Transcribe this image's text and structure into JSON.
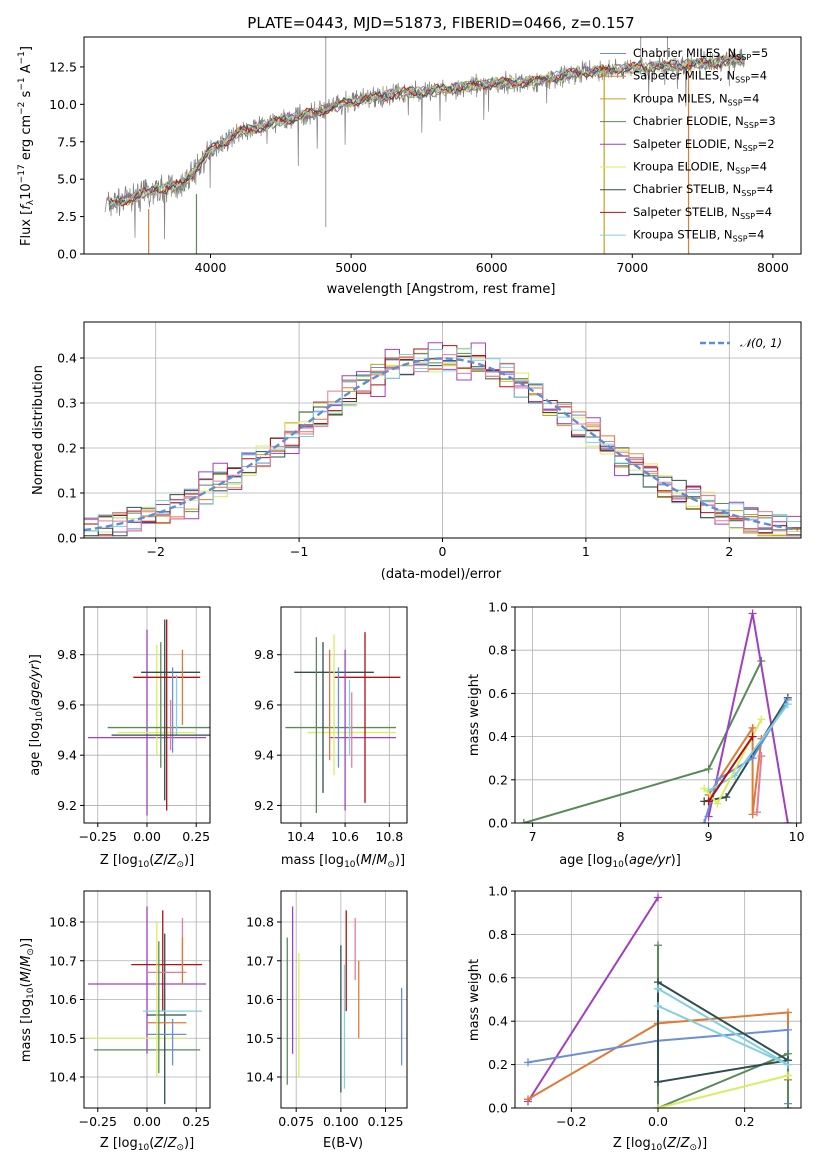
{
  "colors": {
    "chabrier_miles": "#6a8ed8",
    "salpeter_miles": "#e07a35",
    "kroupa_miles": "#c8a020",
    "chabrier_elodie": "#5a8a5a",
    "salpeter_elodie": "#a040c0",
    "kroupa_elodie": "#d8ee60",
    "chabrier_stelib": "#2f4f4f",
    "salpeter_stelib": "#b01010",
    "kroupa_stelib": "#80d0e0",
    "pink": "#e87aa0",
    "spectrum": "#7f7f7f"
  },
  "chart_data": [
    {
      "id": "spectrum",
      "type": "line",
      "title": "PLATE=0443, MJD=51873, FIBERID=0466, z=0.157",
      "xlabel": "wavelength [Angstrom, rest frame]",
      "ylabel": "Flux [f_λ 10^−17 erg cm^−2 s^−1 A^−1]",
      "xlim": [
        3100,
        8200
      ],
      "ylim": [
        0,
        14.5
      ],
      "xticks": [
        "4000",
        "5000",
        "6000",
        "7000",
        "8000"
      ],
      "yticks": [
        "0.0",
        "2.5",
        "5.0",
        "7.5",
        "10.0",
        "12.5"
      ],
      "legend_position": "right",
      "grid": false,
      "continuum": {
        "x": [
          3250,
          3400,
          3600,
          3800,
          4000,
          4200,
          4500,
          4800,
          5000,
          5300,
          5600,
          6000,
          6300,
          6600,
          7000,
          7300,
          7600,
          7800
        ],
        "y": [
          3.3,
          3.6,
          4.3,
          4.6,
          6.9,
          8.1,
          8.9,
          9.6,
          10.2,
          10.7,
          10.9,
          11.4,
          11.5,
          12.1,
          12.4,
          12.6,
          12.8,
          13.0
        ]
      },
      "series": [
        {
          "name": "Chabrier MILES, N_SSP=5",
          "color_key": "chabrier_miles"
        },
        {
          "name": "Salpeter MILES, N_SSP=4",
          "color_key": "salpeter_miles"
        },
        {
          "name": "Kroupa MILES, N_SSP=4",
          "color_key": "kroupa_miles"
        },
        {
          "name": "Chabrier ELODIE, N_SSP=3",
          "color_key": "chabrier_elodie"
        },
        {
          "name": "Salpeter ELODIE, N_SSP=2",
          "color_key": "salpeter_elodie"
        },
        {
          "name": "Kroupa ELODIE, N_SSP=4",
          "color_key": "kroupa_elodie"
        },
        {
          "name": "Chabrier STELIB, N_SSP=4",
          "color_key": "chabrier_stelib"
        },
        {
          "name": "Salpeter STELIB, N_SSP=4",
          "color_key": "salpeter_stelib"
        },
        {
          "name": "Kroupa STELIB, N_SSP=4",
          "color_key": "kroupa_stelib"
        }
      ]
    },
    {
      "id": "residuals",
      "type": "histogram",
      "xlabel": "(data-model)/error",
      "ylabel": "Normed distribution",
      "xlim": [
        -2.5,
        2.5
      ],
      "ylim": [
        0,
        0.48
      ],
      "xticks": [
        "−2",
        "−1",
        "0",
        "1",
        "2"
      ],
      "yticks": [
        "0.0",
        "0.1",
        "0.2",
        "0.3",
        "0.4"
      ],
      "grid": true,
      "legend": {
        "label": "𝒩(0, 1)",
        "position": "top-right"
      },
      "bin_width": 0.1,
      "reference_curve": "normal(0,1)"
    },
    {
      "id": "Z_age",
      "type": "errorbar",
      "xlabel": "Z [log10(Z/Z⊙)]",
      "ylabel": "age  [log10(age/yr)]",
      "xlim": [
        -0.32,
        0.32
      ],
      "ylim": [
        9.13,
        9.99
      ],
      "xticks": [
        "−0.25",
        "0.00",
        "0.25"
      ],
      "xtick_values": [
        -0.25,
        0,
        0.25
      ],
      "yticks": [
        "9.2",
        "9.4",
        "9.6",
        "9.8"
      ],
      "ytick_values": [
        9.2,
        9.4,
        9.6,
        9.8
      ],
      "grid": true,
      "points": [
        {
          "color_key": "salpeter_elodie",
          "x": 0.0,
          "xerr": 0.3,
          "y": 9.47,
          "yerr": 0.0
        },
        {
          "color_key": "salpeter_elodie",
          "x": 0.0,
          "xerr": 0.0,
          "y": 9.53,
          "yerr": 0.37
        },
        {
          "color_key": "kroupa_elodie",
          "x": 0.05,
          "xerr": 0.0,
          "y": 9.62,
          "yerr": 0.22
        },
        {
          "color_key": "kroupa_elodie",
          "x": 0.05,
          "xerr": 0.2,
          "y": 9.49,
          "yerr": 0.0
        },
        {
          "color_key": "chabrier_elodie",
          "x": 0.06,
          "xerr": 0.26,
          "y": 9.51,
          "yerr": 0.0
        },
        {
          "color_key": "chabrier_elodie",
          "x": 0.07,
          "xerr": 0.0,
          "y": 9.6,
          "yerr": 0.25
        },
        {
          "color_key": "chabrier_stelib",
          "x": 0.09,
          "xerr": 0.0,
          "y": 9.58,
          "yerr": 0.36
        },
        {
          "color_key": "chabrier_stelib",
          "x": 0.09,
          "xerr": 0.0,
          "y": 9.73,
          "yerr": 0.0
        },
        {
          "color_key": "salpeter_stelib",
          "x": 0.1,
          "xerr": 0.0,
          "y": 9.56,
          "yerr": 0.38
        },
        {
          "color_key": "salpeter_stelib",
          "x": 0.1,
          "xerr": 0.17,
          "y": 9.71,
          "yerr": 0.0
        },
        {
          "color_key": "chabrier_stelib",
          "x": 0.12,
          "xerr": 0.15,
          "y": 9.73,
          "yerr": 0.0
        },
        {
          "color_key": "pink",
          "x": 0.12,
          "xerr": 0.0,
          "y": 9.52,
          "yerr": 0.1
        },
        {
          "color_key": "chabrier_miles",
          "x": 0.13,
          "xerr": 0.0,
          "y": 9.58,
          "yerr": 0.17
        },
        {
          "color_key": "kroupa_stelib",
          "x": 0.15,
          "xerr": 0.0,
          "y": 9.6,
          "yerr": 0.12
        },
        {
          "color_key": "salpeter_miles",
          "x": 0.18,
          "xerr": 0.0,
          "y": 9.67,
          "yerr": 0.15
        },
        {
          "color_key": "chabrier_stelib",
          "x": 0.12,
          "xerr": 0.3,
          "y": 9.48,
          "yerr": 0.0
        }
      ]
    },
    {
      "id": "mass_age",
      "type": "errorbar",
      "xlabel": "mass [log10(M/M⊙)]",
      "ylim": [
        9.13,
        9.99
      ],
      "xlim": [
        10.31,
        10.88
      ],
      "xticks": [
        "10.4",
        "10.6",
        "10.8"
      ],
      "xtick_values": [
        10.4,
        10.6,
        10.8
      ],
      "yticks": [
        "9.2",
        "9.4",
        "9.6",
        "9.8"
      ],
      "ytick_values": [
        9.2,
        9.4,
        9.6,
        9.8
      ],
      "grid": true,
      "points": [
        {
          "color_key": "chabrier_stelib",
          "x": 10.55,
          "xerr": 0.18,
          "y": 9.73,
          "yerr": 0.0
        },
        {
          "color_key": "salpeter_stelib",
          "x": 10.7,
          "xerr": 0.15,
          "y": 9.71,
          "yerr": 0.0
        },
        {
          "color_key": "chabrier_elodie",
          "x": 10.58,
          "xerr": 0.25,
          "y": 9.51,
          "yerr": 0.0
        },
        {
          "color_key": "kroupa_elodie",
          "x": 10.63,
          "xerr": 0.2,
          "y": 9.49,
          "yerr": 0.0
        },
        {
          "color_key": "salpeter_elodie",
          "x": 10.68,
          "xerr": 0.15,
          "y": 9.47,
          "yerr": 0.0
        },
        {
          "color_key": "chabrier_elodie",
          "x": 10.47,
          "xerr": 0.0,
          "y": 9.52,
          "yerr": 0.35
        },
        {
          "color_key": "chabrier_stelib",
          "x": 10.5,
          "xerr": 0.0,
          "y": 9.55,
          "yerr": 0.3
        },
        {
          "color_key": "salpeter_miles",
          "x": 10.53,
          "xerr": 0.0,
          "y": 9.6,
          "yerr": 0.22
        },
        {
          "color_key": "kroupa_elodie",
          "x": 10.55,
          "xerr": 0.0,
          "y": 9.6,
          "yerr": 0.28
        },
        {
          "color_key": "salpeter_elodie",
          "x": 10.6,
          "xerr": 0.0,
          "y": 9.5,
          "yerr": 0.32
        },
        {
          "color_key": "chabrier_miles",
          "x": 10.57,
          "xerr": 0.0,
          "y": 9.55,
          "yerr": 0.2
        },
        {
          "color_key": "salpeter_stelib",
          "x": 10.69,
          "xerr": 0.0,
          "y": 9.55,
          "yerr": 0.34
        },
        {
          "color_key": "pink",
          "x": 10.63,
          "xerr": 0.0,
          "y": 9.5,
          "yerr": 0.15
        },
        {
          "color_key": "kroupa_stelib",
          "x": 10.62,
          "xerr": 0.0,
          "y": 9.55,
          "yerr": 0.15
        }
      ]
    },
    {
      "id": "age_massweight",
      "type": "line",
      "xlabel": "age  [log10(age/yr)]",
      "ylabel": "mass weight",
      "xlim": [
        6.8,
        10.05
      ],
      "ylim": [
        0,
        1.0
      ],
      "xticks": [
        "7",
        "8",
        "9",
        "10"
      ],
      "xtick_values": [
        7,
        8,
        9,
        10
      ],
      "yticks": [
        "0.0",
        "0.2",
        "0.4",
        "0.6",
        "0.8",
        "1.0"
      ],
      "ytick_values": [
        0,
        0.2,
        0.4,
        0.6,
        0.8,
        1.0
      ],
      "grid": true,
      "series": [
        {
          "color_key": "chabrier_elodie",
          "x": [
            6.9,
            9.0,
            9.6
          ],
          "y": [
            0.0,
            0.25,
            0.75
          ]
        },
        {
          "color_key": "salpeter_elodie",
          "x": [
            9.0,
            9.5,
            9.9
          ],
          "y": [
            0.03,
            0.97,
            0.0
          ]
        },
        {
          "color_key": "salpeter_miles",
          "x": [
            9.0,
            9.5,
            9.5,
            9.6
          ],
          "y": [
            0.13,
            0.44,
            0.04,
            0.39
          ]
        },
        {
          "color_key": "chabrier_stelib",
          "x": [
            8.95,
            9.2,
            9.9
          ],
          "y": [
            0.1,
            0.12,
            0.58
          ]
        },
        {
          "color_key": "chabrier_miles",
          "x": [
            8.95,
            9.1,
            9.5,
            9.9
          ],
          "y": [
            0.0,
            0.2,
            0.3,
            0.57
          ]
        },
        {
          "color_key": "kroupa_stelib",
          "x": [
            9.0,
            9.3,
            9.9
          ],
          "y": [
            0.15,
            0.22,
            0.55
          ]
        },
        {
          "color_key": "kroupa_elodie",
          "x": [
            8.95,
            9.1,
            9.6
          ],
          "y": [
            0.16,
            0.09,
            0.48
          ]
        },
        {
          "color_key": "pink",
          "x": [
            9.55,
            9.6
          ],
          "y": [
            0.05,
            0.31
          ]
        },
        {
          "color_key": "salpeter_stelib",
          "x": [
            9.0,
            9.5
          ],
          "y": [
            0.1,
            0.4
          ]
        }
      ]
    },
    {
      "id": "Z_mass",
      "type": "errorbar",
      "xlabel": "Z [log10(Z/Z⊙)]",
      "ylabel": "mass [log10(M/M⊙)]",
      "xlim": [
        -0.32,
        0.32
      ],
      "ylim": [
        10.32,
        10.88
      ],
      "xticks": [
        "−0.25",
        "0.00",
        "0.25"
      ],
      "xtick_values": [
        -0.25,
        0,
        0.25
      ],
      "yticks": [
        "10.4",
        "10.5",
        "10.6",
        "10.7",
        "10.8"
      ],
      "ytick_values": [
        10.4,
        10.5,
        10.6,
        10.7,
        10.8
      ],
      "grid": true,
      "points": [
        {
          "color_key": "salpeter_elodie",
          "x": 0.0,
          "xerr": 0.3,
          "y": 10.64,
          "yerr": 0.0
        },
        {
          "color_key": "salpeter_elodie",
          "x": 0.0,
          "xerr": 0.0,
          "y": 10.65,
          "yerr": 0.19
        },
        {
          "color_key": "kroupa_elodie",
          "x": -0.05,
          "xerr": 0.25,
          "y": 10.5,
          "yerr": 0.0
        },
        {
          "color_key": "chabrier_elodie",
          "x": 0.0,
          "xerr": 0.27,
          "y": 10.47,
          "yerr": 0.0
        },
        {
          "color_key": "salpeter_stelib",
          "x": 0.1,
          "xerr": 0.18,
          "y": 10.69,
          "yerr": 0.0
        },
        {
          "color_key": "salpeter_stelib",
          "x": 0.08,
          "xerr": 0.0,
          "y": 10.7,
          "yerr": 0.13
        },
        {
          "color_key": "chabrier_stelib",
          "x": 0.09,
          "xerr": 0.0,
          "y": 10.55,
          "yerr": 0.22
        },
        {
          "color_key": "chabrier_stelib",
          "x": 0.1,
          "xerr": 0.1,
          "y": 10.56,
          "yerr": 0.0
        },
        {
          "color_key": "salpeter_miles",
          "x": 0.1,
          "xerr": 0.1,
          "y": 10.54,
          "yerr": 0.0
        },
        {
          "color_key": "pink",
          "x": 0.1,
          "xerr": 0.1,
          "y": 10.67,
          "yerr": 0.0
        },
        {
          "color_key": "pink",
          "x": 0.18,
          "xerr": 0.0,
          "y": 10.74,
          "yerr": 0.07
        },
        {
          "color_key": "kroupa_stelib",
          "x": 0.13,
          "xerr": 0.15,
          "y": 10.57,
          "yerr": 0.0
        },
        {
          "color_key": "chabrier_miles",
          "x": 0.1,
          "xerr": 0.1,
          "y": 10.51,
          "yerr": 0.0
        },
        {
          "color_key": "chabrier_miles",
          "x": 0.13,
          "xerr": 0.0,
          "y": 10.49,
          "yerr": 0.06
        },
        {
          "color_key": "salpeter_miles",
          "x": 0.18,
          "xerr": 0.0,
          "y": 10.7,
          "yerr": 0.06
        },
        {
          "color_key": "chabrier_elodie",
          "x": 0.06,
          "xerr": 0.0,
          "y": 10.58,
          "yerr": 0.17
        },
        {
          "color_key": "kroupa_elodie",
          "x": 0.05,
          "xerr": 0.0,
          "y": 10.6,
          "yerr": 0.2
        }
      ]
    },
    {
      "id": "ebv_mass",
      "type": "errorbar",
      "xlabel": "E(B-V)",
      "xlim": [
        0.0665,
        0.137
      ],
      "ylim": [
        10.32,
        10.88
      ],
      "xticks": [
        "0.075",
        "0.100",
        "0.125"
      ],
      "xtick_values": [
        0.075,
        0.1,
        0.125
      ],
      "yticks": [
        "10.4",
        "10.5",
        "10.6",
        "10.7",
        "10.8"
      ],
      "ytick_values": [
        10.4,
        10.5,
        10.6,
        10.7,
        10.8
      ],
      "grid": true,
      "points": [
        {
          "color_key": "chabrier_elodie",
          "x": 0.07,
          "xerr": 0.0,
          "y": 10.57,
          "yerr": 0.19
        },
        {
          "color_key": "salpeter_elodie",
          "x": 0.073,
          "xerr": 0.0,
          "y": 10.65,
          "yerr": 0.19
        },
        {
          "color_key": "kroupa_elodie",
          "x": 0.0765,
          "xerr": 0.0,
          "y": 10.56,
          "yerr": 0.16
        },
        {
          "color_key": "chabrier_stelib",
          "x": 0.1,
          "xerr": 0.0,
          "y": 10.55,
          "yerr": 0.19
        },
        {
          "color_key": "kroupa_stelib",
          "x": 0.102,
          "xerr": 0.0,
          "y": 10.53,
          "yerr": 0.16
        },
        {
          "color_key": "salpeter_stelib",
          "x": 0.103,
          "xerr": 0.0,
          "y": 10.7,
          "yerr": 0.13
        },
        {
          "color_key": "pink",
          "x": 0.108,
          "xerr": 0.0,
          "y": 10.73,
          "yerr": 0.08
        },
        {
          "color_key": "salpeter_miles",
          "x": 0.11,
          "xerr": 0.0,
          "y": 10.6,
          "yerr": 0.1
        },
        {
          "color_key": "chabrier_miles",
          "x": 0.134,
          "xerr": 0.0,
          "y": 10.53,
          "yerr": 0.1
        }
      ]
    },
    {
      "id": "Z_massweight",
      "type": "line",
      "xlabel": "Z [log10(Z/Z⊙)]",
      "ylabel": "mass weight",
      "xlim": [
        -0.33,
        0.33
      ],
      "ylim": [
        0,
        1.0
      ],
      "xticks": [
        "−0.2",
        "0.0",
        "0.2"
      ],
      "xtick_values": [
        -0.2,
        0,
        0.2
      ],
      "yticks": [
        "0.0",
        "0.2",
        "0.4",
        "0.6",
        "0.8",
        "1.0"
      ],
      "ytick_values": [
        0,
        0.2,
        0.4,
        0.6,
        0.8,
        1.0
      ],
      "grid": true,
      "series": [
        {
          "color_key": "salpeter_elodie",
          "x": [
            -0.3,
            0.0
          ],
          "y": [
            0.03,
            0.97
          ]
        },
        {
          "color_key": "salpeter_miles",
          "x": [
            -0.3,
            0.0,
            0.3,
            0.3
          ],
          "y": [
            0.04,
            0.39,
            0.44,
            0.13
          ]
        },
        {
          "color_key": "chabrier_miles",
          "x": [
            -0.3,
            0.0,
            0.3,
            0.3
          ],
          "y": [
            0.21,
            0.31,
            0.36,
            0.02
          ]
        },
        {
          "color_key": "chabrier_elodie",
          "x": [
            0.0,
            0.0,
            0.3,
            0.3
          ],
          "y": [
            0.75,
            0.0,
            0.25,
            0.0
          ]
        },
        {
          "color_key": "chabrier_stelib",
          "x": [
            0.0,
            0.3,
            0.0,
            0.0
          ],
          "y": [
            0.58,
            0.22,
            0.12,
            0.55
          ]
        },
        {
          "color_key": "kroupa_stelib",
          "x": [
            0.0,
            0.3,
            0.0
          ],
          "y": [
            0.55,
            0.2,
            0.47
          ]
        },
        {
          "color_key": "kroupa_elodie",
          "x": [
            0.0,
            0.3
          ],
          "y": [
            0.0,
            0.15
          ]
        }
      ]
    }
  ]
}
